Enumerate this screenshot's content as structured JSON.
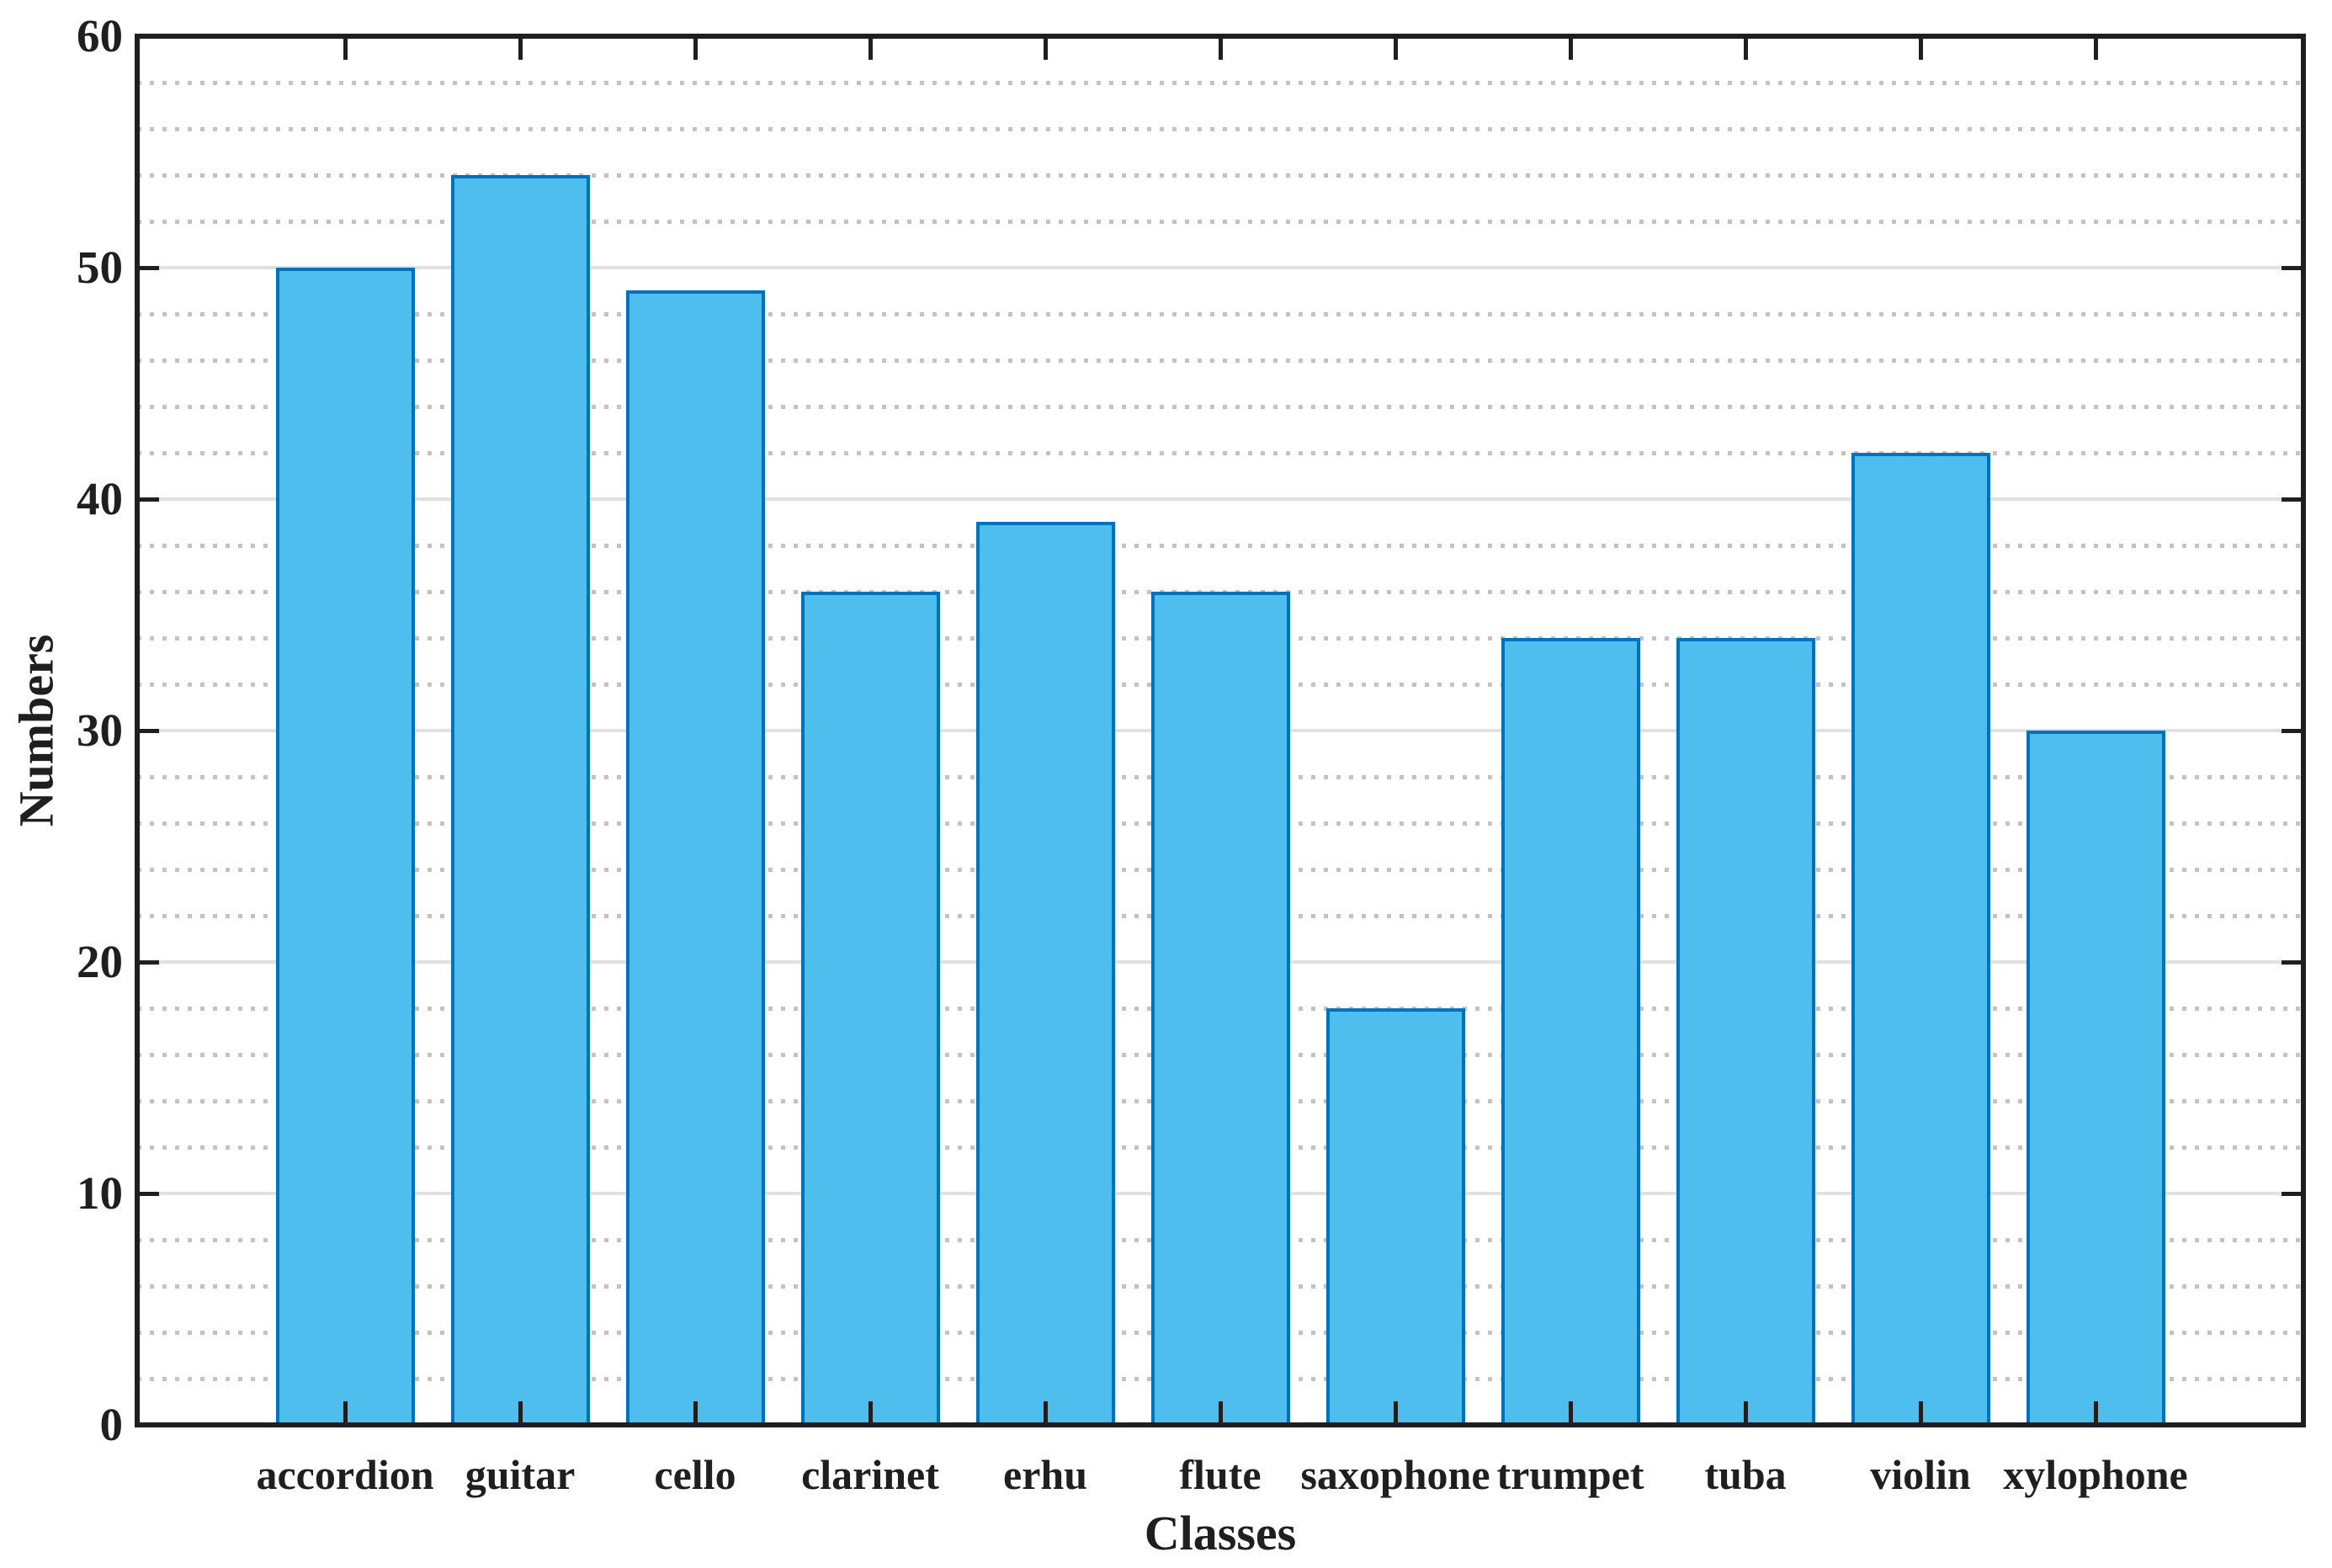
{
  "figure": {
    "background": "#FFFFFF"
  },
  "chart_data": {
    "type": "bar",
    "title": "",
    "xlabel": "Classes",
    "ylabel": "Numbers",
    "categories": [
      "accordion",
      "guitar",
      "cello",
      "clarinet",
      "erhu",
      "flute",
      "saxophone",
      "trumpet",
      "tuba",
      "violin",
      "xylophone"
    ],
    "values": [
      50,
      54,
      49,
      36,
      39,
      36,
      18,
      34,
      34,
      42,
      30
    ],
    "ylim": [
      0,
      60
    ],
    "ytick_labels": [
      "0",
      "10",
      "20",
      "30",
      "40",
      "50",
      "60"
    ],
    "ytick_step": 10,
    "minor_grid_step": 2,
    "grid": "major-solid, minor-dotted, horizontal only",
    "legend_position": "none",
    "colors": {
      "bar_fill": "#4DBEEE",
      "bar_edge": "#0072BD",
      "axis": "#1F1F1F",
      "text": "#1F1F1F",
      "grid_major": "#E1E1E1",
      "grid_minor": "#C3C3C3"
    }
  }
}
